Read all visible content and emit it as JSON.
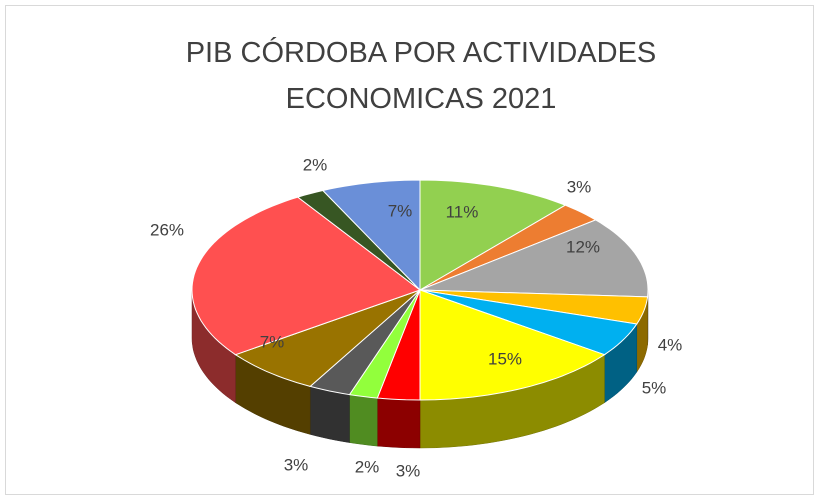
{
  "chart_data": {
    "type": "pie",
    "title": "PIB CÓRDOBA POR ACTIVIDADES ECONOMICAS 2021",
    "values": [
      11,
      3,
      12,
      4,
      5,
      15,
      3,
      2,
      3,
      7,
      26,
      2,
      7
    ],
    "value_labels": [
      "11%",
      "3%",
      "12%",
      "4%",
      "5%",
      "15%",
      "3%",
      "2%",
      "3%",
      "7%",
      "26%",
      "2%",
      "7%"
    ],
    "colors": [
      "#92d050",
      "#ed7d31",
      "#a5a5a5",
      "#ffc000",
      "#00b0f0",
      "#ffff00",
      "#ff0000",
      "#92ff3c",
      "#595959",
      "#997300",
      "#ff5050",
      "#375623",
      "#6a8fd8"
    ]
  }
}
